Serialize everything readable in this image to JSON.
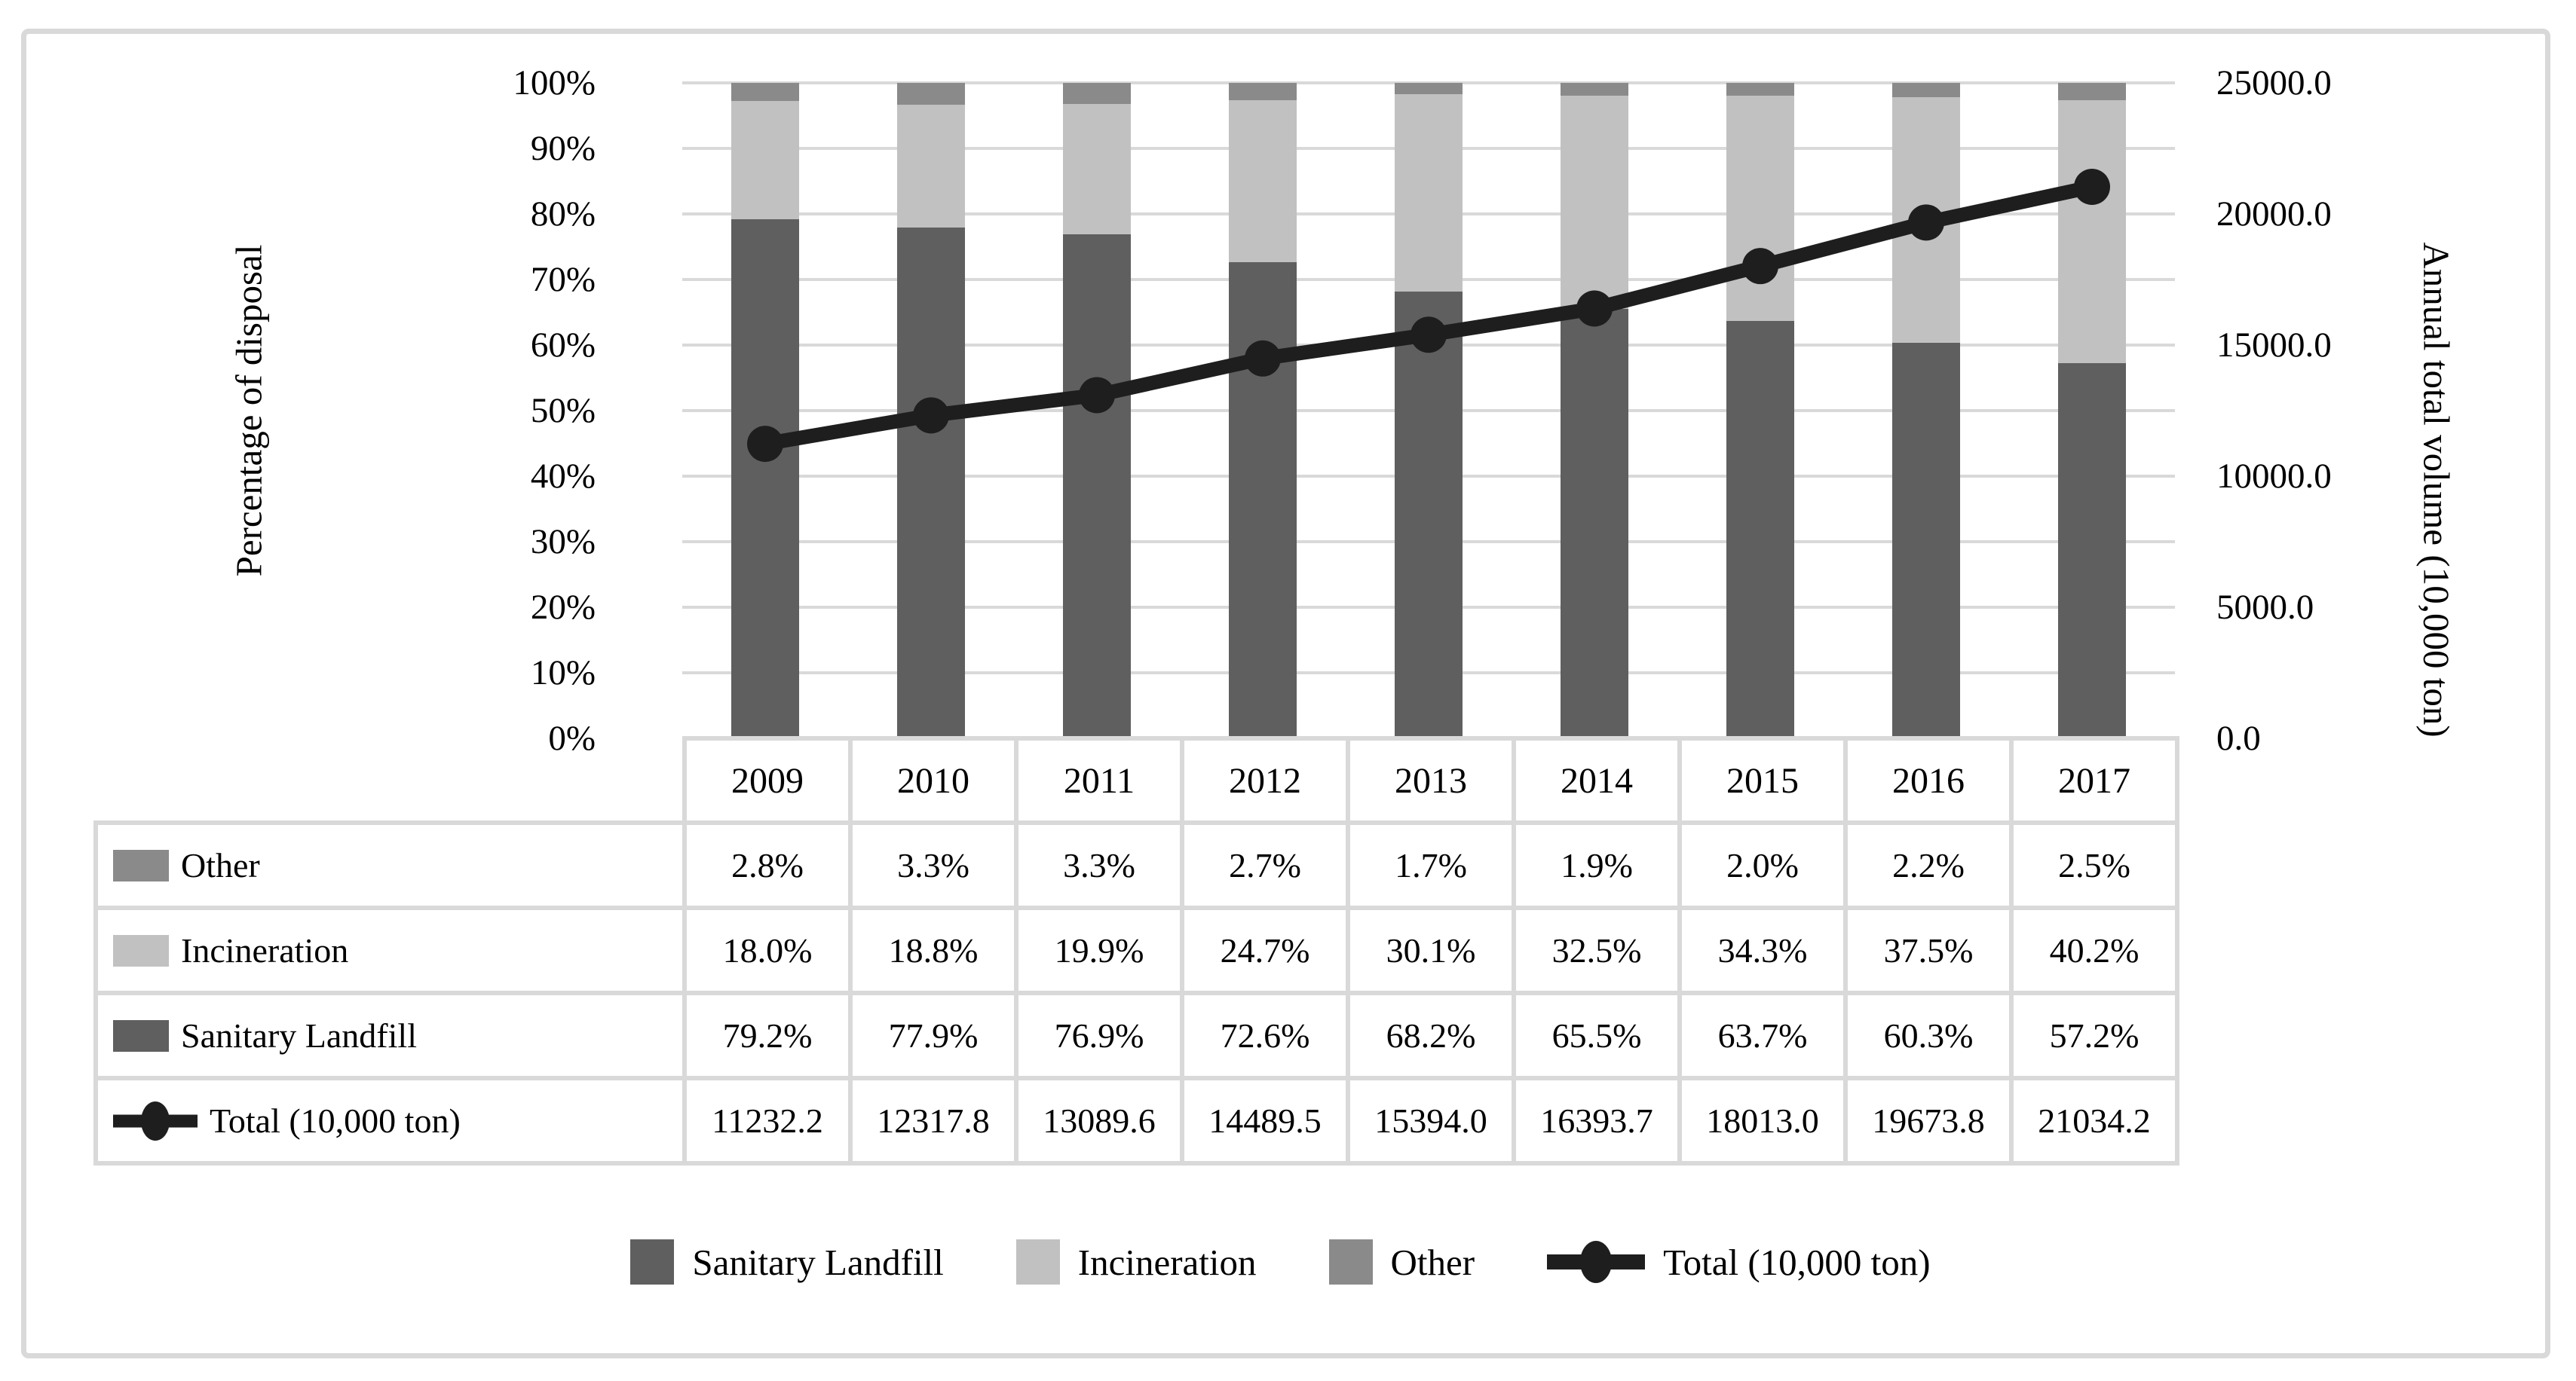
{
  "figure": {
    "kind": "combo chart: 100% stacked columns with line on secondary axis, plus data table"
  },
  "chart_data": {
    "type": "bar",
    "subtype": "stacked-percent-columns-with-line",
    "categories": [
      "2009",
      "2010",
      "2011",
      "2012",
      "2013",
      "2014",
      "2015",
      "2016",
      "2017"
    ],
    "series": [
      {
        "name": "Sanitary Landfill",
        "type": "bar",
        "color": "#5f5f5f",
        "values_pct": [
          79.2,
          77.9,
          76.9,
          72.6,
          68.2,
          65.5,
          63.7,
          60.3,
          57.2
        ]
      },
      {
        "name": "Incineration",
        "type": "bar",
        "color": "#c1c1c1",
        "values_pct": [
          18.0,
          18.8,
          19.9,
          24.7,
          30.1,
          32.5,
          34.3,
          37.5,
          40.2
        ]
      },
      {
        "name": "Other",
        "type": "bar",
        "color": "#8a8a8a",
        "values_pct": [
          2.8,
          3.3,
          3.3,
          2.7,
          1.7,
          1.9,
          2.0,
          2.2,
          2.5
        ]
      },
      {
        "name": "Total (10,000 ton)",
        "type": "line",
        "color": "#1e1e1e",
        "values": [
          11232.2,
          12317.8,
          13089.6,
          14489.5,
          15394.0,
          16393.7,
          18013.0,
          19673.8,
          21034.2
        ]
      }
    ],
    "left_axis": {
      "label": "Percentage of disposal",
      "min": 0,
      "max": 100,
      "tick_labels": [
        "0%",
        "10%",
        "20%",
        "30%",
        "40%",
        "50%",
        "60%",
        "70%",
        "80%",
        "90%",
        "100%"
      ]
    },
    "right_axis": {
      "label": "Annual total volume (10,000 ton)",
      "min": 0,
      "max": 25000,
      "tick_values": [
        0,
        5000,
        10000,
        15000,
        20000,
        25000
      ],
      "tick_labels": [
        "0.0",
        "5000.0",
        "10000.0",
        "15000.0",
        "20000.0",
        "25000.0"
      ]
    },
    "grid": true,
    "legend_position": "bottom"
  },
  "data_table": {
    "year_row": [
      "2009",
      "2010",
      "2011",
      "2012",
      "2013",
      "2014",
      "2015",
      "2016",
      "2017"
    ],
    "rows": [
      {
        "key": "swatch",
        "color": "#8a8a8a",
        "label": "Other",
        "values": [
          "2.8%",
          "3.3%",
          "3.3%",
          "2.7%",
          "1.7%",
          "1.9%",
          "2.0%",
          "2.2%",
          "2.5%"
        ]
      },
      {
        "key": "swatch",
        "color": "#c1c1c1",
        "label": "Incineration",
        "values": [
          "18.0%",
          "18.8%",
          "19.9%",
          "24.7%",
          "30.1%",
          "32.5%",
          "34.3%",
          "37.5%",
          "40.2%"
        ]
      },
      {
        "key": "swatch",
        "color": "#5f5f5f",
        "label": "Sanitary Landfill",
        "values": [
          "79.2%",
          "77.9%",
          "76.9%",
          "72.6%",
          "68.2%",
          "65.5%",
          "63.7%",
          "60.3%",
          "57.2%"
        ]
      },
      {
        "key": "line-marker",
        "color": "#1e1e1e",
        "label": "Total (10,000 ton)",
        "values": [
          "11232.2",
          "12317.8",
          "13089.6",
          "14489.5",
          "15394.0",
          "16393.7",
          "18013.0",
          "19673.8",
          "21034.2"
        ]
      }
    ]
  },
  "legend": {
    "items": [
      {
        "type": "swatch",
        "color": "#5f5f5f",
        "label": "Sanitary Landfill"
      },
      {
        "type": "swatch",
        "color": "#c1c1c1",
        "label": "Incineration"
      },
      {
        "type": "swatch",
        "color": "#8a8a8a",
        "label": "Other"
      },
      {
        "type": "line-marker",
        "color": "#1e1e1e",
        "label": "Total (10,000 ton)"
      }
    ]
  },
  "colors": {
    "grid": "#d9d9d9",
    "frame_border": "#d9d9d9",
    "table_border": "#d9d9d9",
    "text": "#000000"
  }
}
